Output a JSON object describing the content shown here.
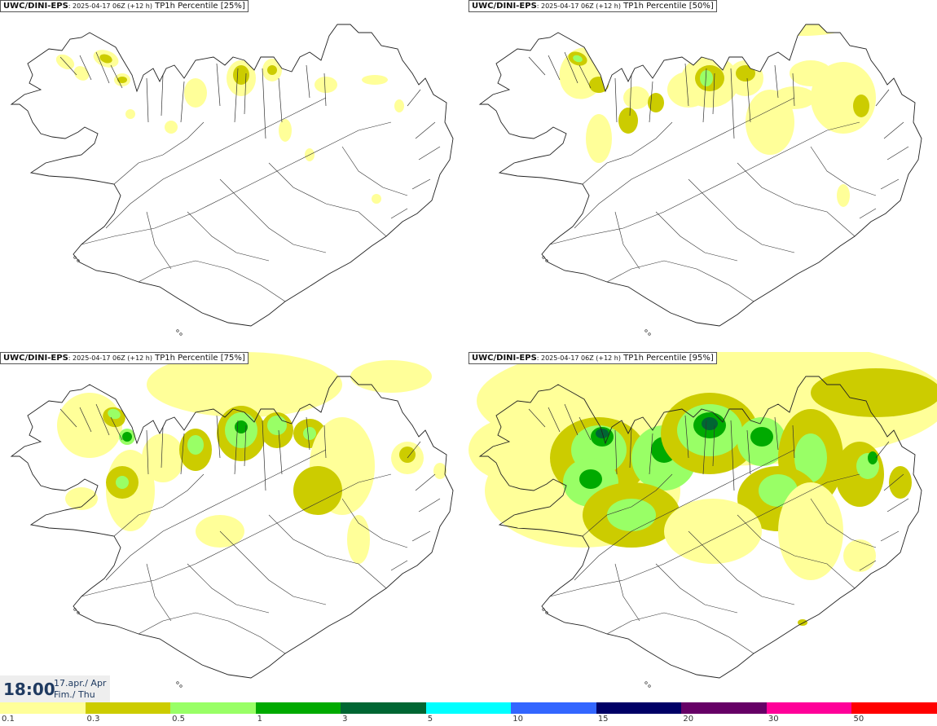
{
  "panels": [
    {
      "source": "UWC/DINI-EPS",
      "run": ": 2025-04-17 06Z (+12 h)",
      "field": " TP1h Percentile [25%]",
      "level": 0
    },
    {
      "source": "UWC/DINI-EPS",
      "run": ": 2025-04-17 06Z (+12 h)",
      "field": " TP1h Percentile [50%]",
      "level": 1
    },
    {
      "source": "UWC/DINI-EPS",
      "run": ": 2025-04-17 06Z (+12 h)",
      "field": " TP1h Percentile [75%]",
      "level": 2
    },
    {
      "source": "UWC/DINI-EPS",
      "run": ": 2025-04-17 06Z (+12 h)",
      "field": " TP1h Percentile [95%]",
      "level": 3
    }
  ],
  "valid_time": {
    "time": "18:00",
    "date_line": "17.apr./ Apr",
    "day_line": "Fim./ Thu"
  },
  "legend": {
    "colors": [
      "#ffff99",
      "#cccc00",
      "#99ff66",
      "#00aa00",
      "#006633",
      "#00ffff",
      "#3366ff",
      "#000066",
      "#660066",
      "#ff0099",
      "#ff0000"
    ],
    "labels": [
      "0.1",
      "0.3",
      "0.5",
      "1",
      "3",
      "5",
      "10",
      "15",
      "20",
      "30",
      "50"
    ]
  }
}
